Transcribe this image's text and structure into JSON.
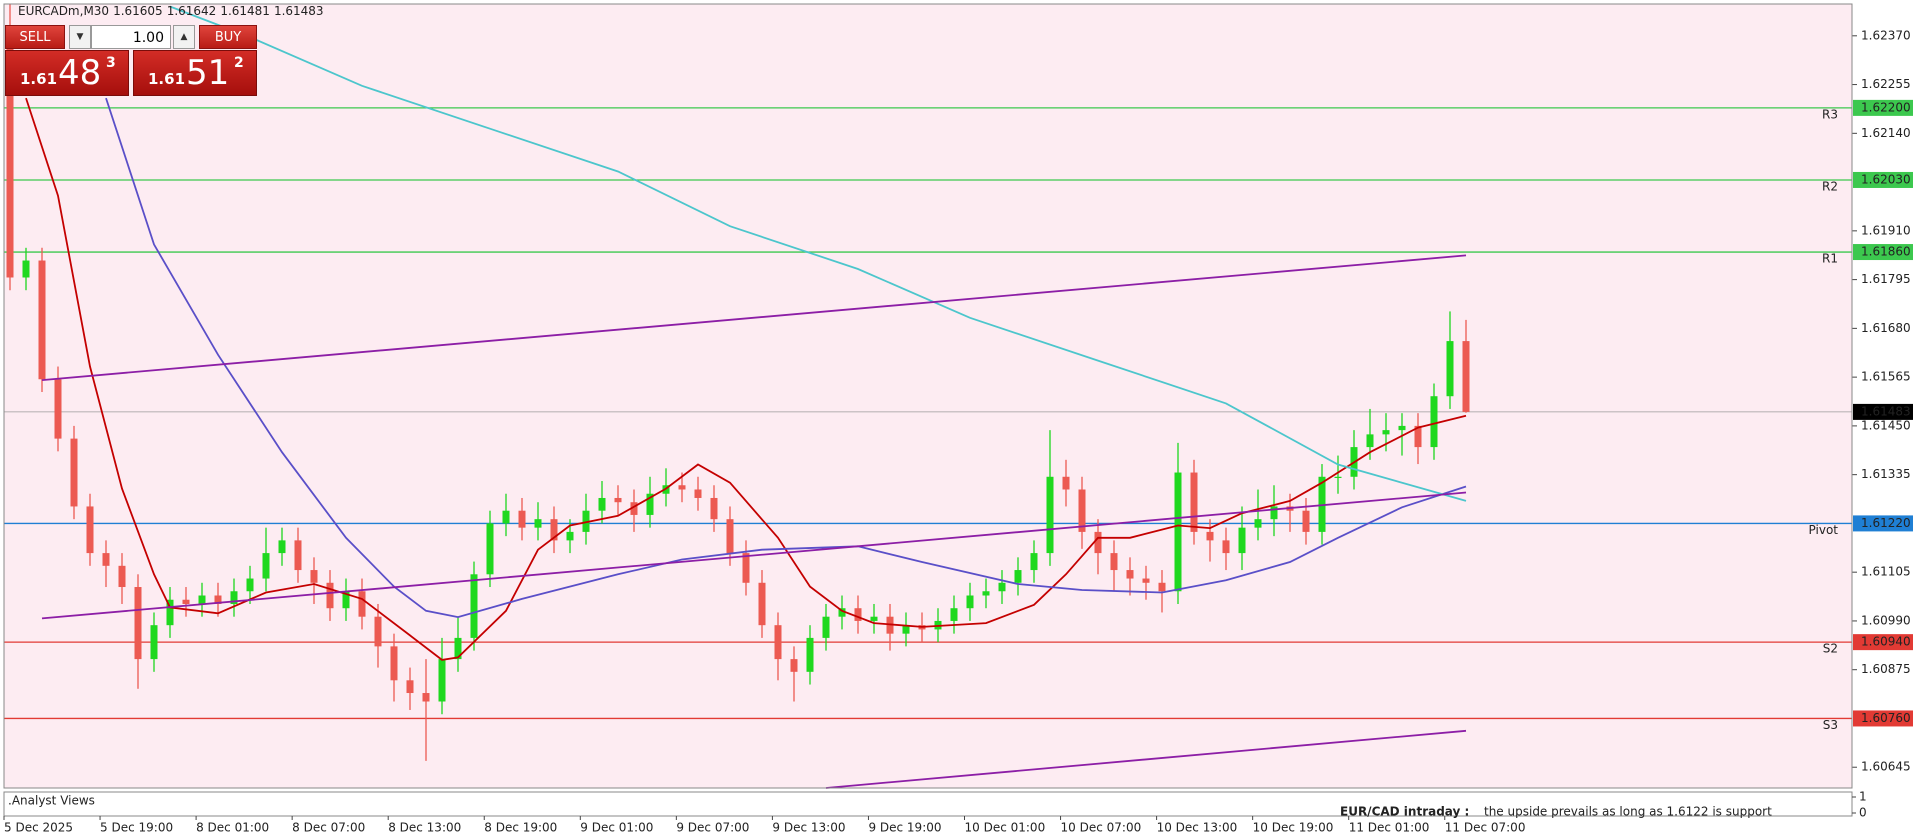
{
  "header": {
    "symbol": "EURCADm,M30",
    "ohlc": [
      1.61605,
      1.61642,
      1.61481,
      1.61483
    ]
  },
  "trade_panel": {
    "sell": "SELL",
    "buy": "BUY",
    "lot": "1.00",
    "sell_price": {
      "small": "1.61",
      "big": "48",
      "sup": "3"
    },
    "buy_price": {
      "small": "1.61",
      "big": "51",
      "sup": "2"
    }
  },
  "chart_data": {
    "type": "candlestick",
    "categories": [
      "5 Dec 2025",
      "5 Dec 19:00",
      "8 Dec 01:00",
      "8 Dec 07:00",
      "8 Dec 13:00",
      "8 Dec 19:00",
      "9 Dec 01:00",
      "9 Dec 07:00",
      "9 Dec 13:00",
      "9 Dec 19:00",
      "10 Dec 01:00",
      "10 Dec 07:00",
      "10 Dec 13:00",
      "10 Dec 19:00",
      "11 Dec 01:00",
      "11 Dec 07:00"
    ],
    "ylim": [
      1.60596,
      1.62445
    ],
    "yticks": [
      {
        "value": 1.6237,
        "label": "1.62370"
      },
      1.62255,
      {
        "value": 1.6214,
        "label": "1.62140"
      },
      {
        "value": 1.6191,
        "label": "1.61910"
      },
      1.61795,
      {
        "value": 1.6168,
        "label": "1.61680"
      },
      1.61565,
      {
        "value": 1.6145,
        "label": "1.61450"
      },
      1.61335,
      1.61105,
      {
        "value": 1.6099,
        "label": "1.60990"
      },
      1.60875,
      1.60645
    ],
    "bull_color": "#1fd81f",
    "bear_color": "#ec5a52",
    "open": [
      1.6235,
      1.618,
      1.6184,
      1.6156,
      1.6142,
      1.6126,
      1.6115,
      1.6112,
      1.6107,
      1.609,
      1.6098,
      1.6104,
      1.6103,
      1.6105,
      1.6103,
      1.6106,
      1.6109,
      1.6115,
      1.6118,
      1.6111,
      1.6108,
      1.6102,
      1.6106,
      1.61,
      1.6093,
      1.6085,
      1.6082,
      1.608,
      1.609,
      1.6095,
      1.611,
      1.6122,
      1.6125,
      1.6121,
      1.6123,
      1.6118,
      1.612,
      1.6125,
      1.6128,
      1.6127,
      1.6124,
      1.6129,
      1.6131,
      1.613,
      1.6128,
      1.6123,
      1.6115,
      1.6108,
      1.6098,
      1.609,
      1.6087,
      1.6095,
      1.61,
      1.6102,
      1.6099,
      1.61,
      1.6096,
      1.6098,
      1.6097,
      1.6099,
      1.6102,
      1.6105,
      1.6106,
      1.6108,
      1.6111,
      1.6115,
      1.6133,
      1.613,
      1.612,
      1.6115,
      1.6111,
      1.6109,
      1.6108,
      1.6106,
      1.6134,
      1.612,
      1.6118,
      1.6115,
      1.6121,
      1.6123,
      1.6126,
      1.6125,
      1.612,
      1.6133,
      1.6133,
      1.614,
      1.6143,
      1.6144,
      1.6145,
      1.614,
      1.6152,
      1.6165
    ],
    "high": [
      1.62445,
      1.6187,
      1.6187,
      1.6159,
      1.6145,
      1.6129,
      1.6118,
      1.6115,
      1.611,
      1.6101,
      1.6107,
      1.6107,
      1.6108,
      1.6108,
      1.6109,
      1.6112,
      1.6121,
      1.6121,
      1.6121,
      1.6114,
      1.6111,
      1.6109,
      1.6109,
      1.6103,
      1.6096,
      1.6088,
      1.609,
      1.6095,
      1.61,
      1.6113,
      1.6125,
      1.6129,
      1.6128,
      1.6127,
      1.6126,
      1.6123,
      1.6129,
      1.6132,
      1.6131,
      1.613,
      1.6133,
      1.6135,
      1.6134,
      1.6133,
      1.6131,
      1.6126,
      1.6118,
      1.6111,
      1.6101,
      1.6093,
      1.6098,
      1.6103,
      1.6105,
      1.6105,
      1.6103,
      1.6103,
      1.6101,
      1.6101,
      1.6102,
      1.6105,
      1.6108,
      1.6109,
      1.6111,
      1.6114,
      1.6118,
      1.6144,
      1.6137,
      1.6133,
      1.6123,
      1.6118,
      1.6114,
      1.6112,
      1.6111,
      1.6141,
      1.6137,
      1.6123,
      1.6121,
      1.6126,
      1.613,
      1.6131,
      1.6129,
      1.6128,
      1.6136,
      1.6138,
      1.6144,
      1.6149,
      1.6148,
      1.6148,
      1.6148,
      1.6155,
      1.6172,
      1.617
    ],
    "low": [
      1.6177,
      1.6177,
      1.6153,
      1.6139,
      1.6123,
      1.6112,
      1.6107,
      1.6103,
      1.6083,
      1.6087,
      1.6095,
      1.61,
      1.61,
      1.61,
      1.61,
      1.6103,
      1.6106,
      1.6112,
      1.6108,
      1.6103,
      1.6099,
      1.6099,
      1.6097,
      1.6088,
      1.608,
      1.6078,
      1.6066,
      1.6077,
      1.6087,
      1.6092,
      1.6107,
      1.6119,
      1.6118,
      1.6118,
      1.6115,
      1.6115,
      1.6117,
      1.6122,
      1.6124,
      1.612,
      1.6121,
      1.6126,
      1.6127,
      1.6125,
      1.612,
      1.6112,
      1.6105,
      1.6095,
      1.6085,
      1.608,
      1.6084,
      1.6092,
      1.6097,
      1.6096,
      1.6096,
      1.6092,
      1.6093,
      1.6094,
      1.6094,
      1.6096,
      1.6099,
      1.6102,
      1.6103,
      1.6105,
      1.6108,
      1.6112,
      1.6126,
      1.6116,
      1.611,
      1.6106,
      1.6105,
      1.6104,
      1.6101,
      1.6103,
      1.6117,
      1.6113,
      1.6111,
      1.6111,
      1.6118,
      1.6119,
      1.612,
      1.6117,
      1.6117,
      1.6129,
      1.613,
      1.6137,
      1.6139,
      1.6138,
      1.6136,
      1.6137,
      1.6149,
      1.61481
    ],
    "close": [
      1.618,
      1.6184,
      1.6156,
      1.6142,
      1.6126,
      1.6115,
      1.6112,
      1.6107,
      1.609,
      1.6098,
      1.6104,
      1.6103,
      1.6105,
      1.6103,
      1.6106,
      1.6109,
      1.6115,
      1.6118,
      1.6111,
      1.6108,
      1.6102,
      1.6106,
      1.61,
      1.6093,
      1.6085,
      1.6082,
      1.608,
      1.609,
      1.6095,
      1.611,
      1.6122,
      1.6125,
      1.6121,
      1.6123,
      1.6118,
      1.612,
      1.6125,
      1.6128,
      1.6127,
      1.6124,
      1.6129,
      1.6131,
      1.613,
      1.6128,
      1.6123,
      1.6115,
      1.6108,
      1.6098,
      1.609,
      1.6087,
      1.6095,
      1.61,
      1.6102,
      1.6099,
      1.61,
      1.6096,
      1.6098,
      1.6097,
      1.6099,
      1.6102,
      1.6105,
      1.6106,
      1.6108,
      1.6111,
      1.6115,
      1.6133,
      1.613,
      1.612,
      1.6115,
      1.6111,
      1.6109,
      1.6108,
      1.6106,
      1.6134,
      1.612,
      1.6118,
      1.6115,
      1.6121,
      1.6123,
      1.6126,
      1.6125,
      1.612,
      1.6133,
      1.6133,
      1.614,
      1.6143,
      1.6144,
      1.6145,
      1.614,
      1.6152,
      1.6165,
      1.61483
    ],
    "indicators": [
      {
        "color": "#c40000",
        "x": [
          1,
          3,
          5,
          7,
          9,
          10,
          13,
          16,
          19,
          22,
          25,
          27,
          28,
          31,
          33,
          35,
          38,
          41,
          43,
          45,
          48,
          50,
          52,
          54,
          57,
          61,
          64,
          66,
          68,
          70,
          73,
          75,
          77,
          80,
          82,
          85,
          88,
          91
        ],
        "values": [
          1.62223,
          1.61993,
          1.6159,
          1.61302,
          1.611,
          1.61022,
          1.61008,
          1.61057,
          1.61077,
          1.61042,
          1.60956,
          1.60898,
          1.60904,
          1.61014,
          1.61158,
          1.61215,
          1.61238,
          1.61302,
          1.61359,
          1.61316,
          1.61186,
          1.61071,
          1.61014,
          1.60985,
          1.60976,
          1.60985,
          1.61028,
          1.611,
          1.61186,
          1.61186,
          1.61215,
          1.61209,
          1.61244,
          1.61273,
          1.61316,
          1.61388,
          1.61446,
          1.61474
        ]
      },
      {
        "color": "#5a4fc8",
        "x": [
          6,
          9,
          13,
          17,
          21,
          24,
          26,
          28,
          32,
          38,
          42,
          47,
          53,
          57,
          63,
          67,
          72,
          76,
          80,
          83,
          87,
          91
        ],
        "values": [
          1.62223,
          1.61878,
          1.61618,
          1.61388,
          1.61186,
          1.61071,
          1.61014,
          1.60999,
          1.61042,
          1.611,
          1.61135,
          1.61158,
          1.61166,
          1.61129,
          1.61077,
          1.61063,
          1.61057,
          1.61086,
          1.61129,
          1.61186,
          1.61258,
          1.61307
        ]
      },
      {
        "color": "#4cc6cc",
        "x": [
          10,
          15,
          22,
          30,
          38,
          45,
          53,
          60,
          68,
          76,
          83,
          91
        ],
        "values": [
          1.62439,
          1.62367,
          1.62252,
          1.62151,
          1.6205,
          1.61921,
          1.6182,
          1.61705,
          1.61604,
          1.61503,
          1.61359,
          1.61273
        ]
      },
      {
        "color": "#8c1ea6",
        "x": [
          2,
          91
        ],
        "values": [
          1.61558,
          1.61852
        ]
      },
      {
        "color": "#8c1ea6",
        "x": [
          2,
          91
        ],
        "values": [
          1.60996,
          1.61293
        ]
      },
      {
        "color": "#8c1ea6",
        "x": [
          51,
          91
        ],
        "values": [
          1.60596,
          1.60731
        ]
      }
    ],
    "levels": [
      {
        "name": "R3",
        "value": 1.622,
        "label": "1.62200",
        "color": "#3cc84e"
      },
      {
        "name": "R2",
        "value": 1.6203,
        "label": "1.62030",
        "color": "#3cc84e"
      },
      {
        "name": "R1",
        "value": 1.6186,
        "label": "1.61860",
        "color": "#3cc84e"
      },
      {
        "name": "Pivot",
        "value": 1.6122,
        "label": "1.61220",
        "color": "#1f7fd4"
      },
      {
        "name": "S2",
        "value": 1.6094,
        "label": "1.60940",
        "color": "#e23a34"
      },
      {
        "name": "S3",
        "value": 1.6076,
        "label": "1.60760",
        "color": "#e23a34"
      }
    ],
    "current_price": 1.61483,
    "panel": {
      "title": ".Analyst Views",
      "subject": "EUR/CAD intraday :",
      "text": "the upside prevails as long as 1.6122 is support",
      "ylim": [
        0,
        1
      ],
      "yticks": [
        0,
        1
      ]
    }
  }
}
